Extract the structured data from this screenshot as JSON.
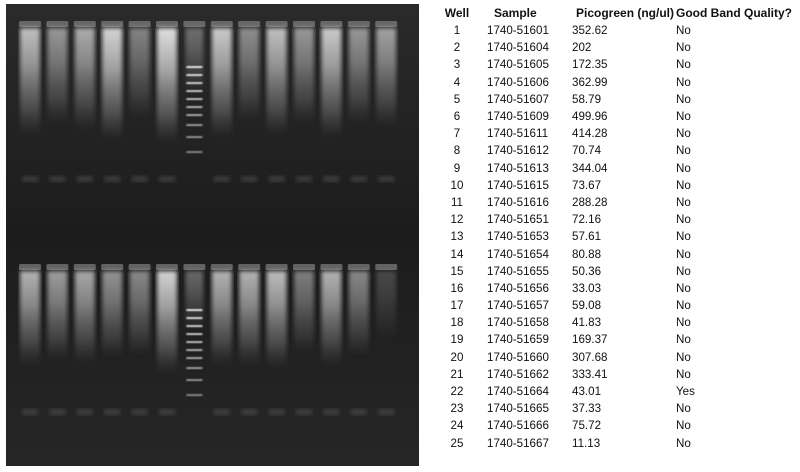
{
  "table": {
    "headers": {
      "well": "Well",
      "sample": "Sample",
      "picogreen": "Picogreen (ng/ul)",
      "quality": "Good Band Quality?"
    },
    "rows": [
      {
        "well": "1",
        "sample": "1740-51601",
        "picogreen": "352.62",
        "quality": "No"
      },
      {
        "well": "2",
        "sample": "1740-51604",
        "picogreen": "202",
        "quality": "No"
      },
      {
        "well": "3",
        "sample": "1740-51605",
        "picogreen": "172.35",
        "quality": "No"
      },
      {
        "well": "4",
        "sample": "1740-51606",
        "picogreen": "362.99",
        "quality": "No"
      },
      {
        "well": "5",
        "sample": "1740-51607",
        "picogreen": "58.79",
        "quality": "No"
      },
      {
        "well": "6",
        "sample": "1740-51609",
        "picogreen": "499.96",
        "quality": "No"
      },
      {
        "well": "7",
        "sample": "1740-51611",
        "picogreen": "414.28",
        "quality": "No"
      },
      {
        "well": "8",
        "sample": "1740-51612",
        "picogreen": "70.74",
        "quality": "No"
      },
      {
        "well": "9",
        "sample": "1740-51613",
        "picogreen": "344.04",
        "quality": "No"
      },
      {
        "well": "10",
        "sample": "1740-51615",
        "picogreen": "73.67",
        "quality": "No"
      },
      {
        "well": "11",
        "sample": "1740-51616",
        "picogreen": "288.28",
        "quality": "No"
      },
      {
        "well": "12",
        "sample": "1740-51651",
        "picogreen": "72.16",
        "quality": "No"
      },
      {
        "well": "13",
        "sample": "1740-51653",
        "picogreen": "57.61",
        "quality": "No"
      },
      {
        "well": "14",
        "sample": "1740-51654",
        "picogreen": "80.88",
        "quality": "No"
      },
      {
        "well": "15",
        "sample": "1740-51655",
        "picogreen": "50.36",
        "quality": "No"
      },
      {
        "well": "16",
        "sample": "1740-51656",
        "picogreen": "33.03",
        "quality": "No"
      },
      {
        "well": "17",
        "sample": "1740-51657",
        "picogreen": "59.08",
        "quality": "No"
      },
      {
        "well": "18",
        "sample": "1740-51658",
        "picogreen": "41.83",
        "quality": "No"
      },
      {
        "well": "19",
        "sample": "1740-51659",
        "picogreen": "169.37",
        "quality": "No"
      },
      {
        "well": "20",
        "sample": "1740-51660",
        "picogreen": "307.68",
        "quality": "No"
      },
      {
        "well": "21",
        "sample": "1740-51662",
        "picogreen": "333.41",
        "quality": "No"
      },
      {
        "well": "22",
        "sample": "1740-51664",
        "picogreen": "43.01",
        "quality": "Yes"
      },
      {
        "well": "23",
        "sample": "1740-51665",
        "picogreen": "37.33",
        "quality": "No"
      },
      {
        "well": "24",
        "sample": "1740-51666",
        "picogreen": "75.72",
        "quality": "No"
      },
      {
        "well": "25",
        "sample": "1740-51667",
        "picogreen": "11.13",
        "quality": "No"
      }
    ]
  },
  "gel": {
    "top_row_lane_brightness": [
      0.75,
      0.55,
      0.65,
      0.85,
      0.45,
      0.9,
      0.9,
      0.8,
      0.5,
      0.75,
      0.55,
      0.8,
      0.55,
      0.6
    ],
    "bottom_row_lane_brightness": [
      0.7,
      0.6,
      0.65,
      0.55,
      0.5,
      0.85,
      0.3,
      0.7,
      0.7,
      0.75,
      0.45,
      0.7,
      0.5,
      0.2
    ],
    "ladder_lane_top": 7,
    "ladder_lane_bottom": 7
  }
}
